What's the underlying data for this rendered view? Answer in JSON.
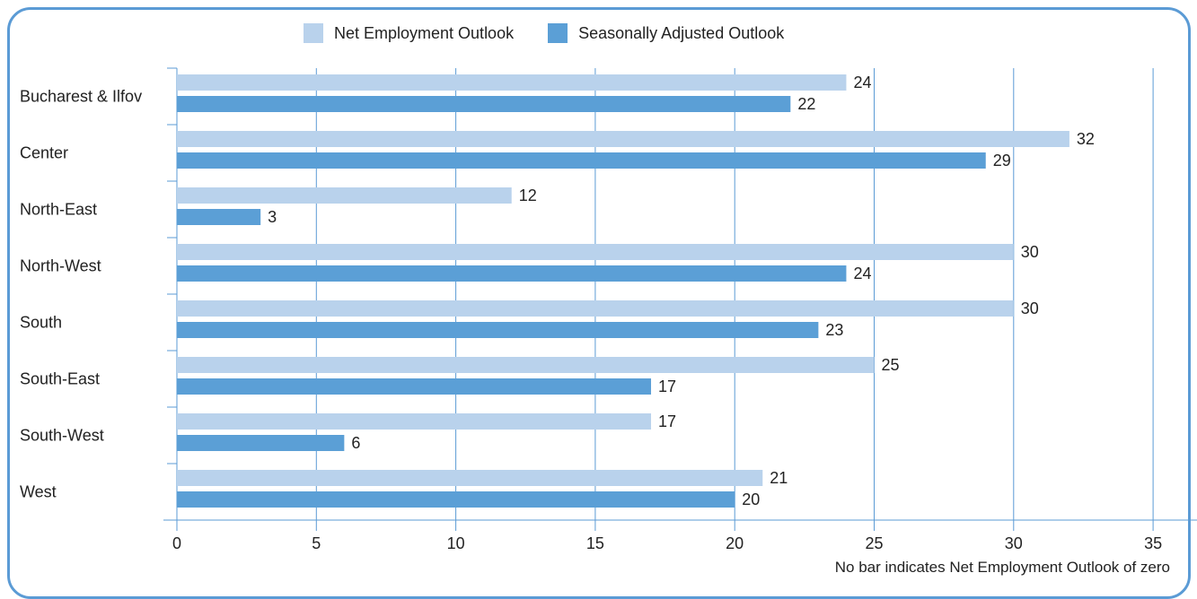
{
  "legend": [
    {
      "label": "Net Employment Outlook",
      "color": "#b9d2ec"
    },
    {
      "label": "Seasonally Adjusted Outlook",
      "color": "#5b9fd6"
    }
  ],
  "note": "No bar indicates Net Employment Outlook of zero",
  "chart_data": {
    "type": "bar",
    "orientation": "horizontal",
    "categories": [
      "Bucharest & Ilfov",
      "Center",
      "North-East",
      "North-West",
      "South",
      "South-East",
      "South-West",
      "West"
    ],
    "series": [
      {
        "name": "Net Employment Outlook",
        "color": "#b9d2ec",
        "values": [
          24,
          32,
          12,
          30,
          30,
          25,
          17,
          21
        ]
      },
      {
        "name": "Seasonally Adjusted Outlook",
        "color": "#5b9fd6",
        "values": [
          22,
          29,
          3,
          24,
          23,
          17,
          6,
          20
        ]
      }
    ],
    "xticks": [
      0,
      5,
      10,
      15,
      20,
      25,
      30,
      35
    ],
    "xlim": [
      0,
      35
    ],
    "grid": true,
    "legend_position": "top"
  }
}
